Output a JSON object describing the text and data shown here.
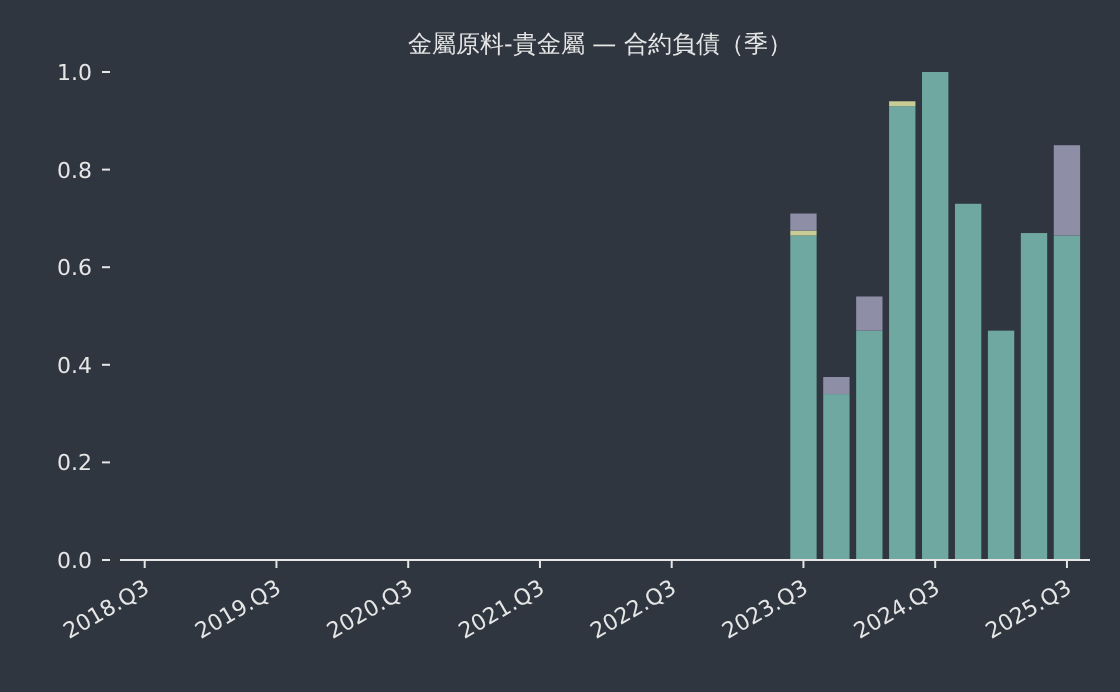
{
  "chart_data": {
    "type": "bar",
    "title": "金屬原料-貴金屬 — 合約負債（季）",
    "stacked": true,
    "categories": [
      "2018.Q3",
      null,
      null,
      null,
      "2019.Q3",
      null,
      null,
      null,
      "2020.Q3",
      null,
      null,
      null,
      "2021.Q3",
      null,
      null,
      null,
      "2022.Q3",
      null,
      null,
      null,
      "2023.Q3",
      null,
      null,
      null,
      "2024.Q3",
      null,
      null,
      null,
      "2025.Q3"
    ],
    "series": [
      {
        "color": "#6fa8a0",
        "values": [
          null,
          null,
          null,
          null,
          null,
          null,
          null,
          null,
          null,
          null,
          null,
          null,
          null,
          null,
          null,
          null,
          null,
          null,
          null,
          null,
          0.665,
          0.34,
          0.47,
          0.93,
          1.0,
          0.73,
          0.47,
          0.67,
          0.665
        ]
      },
      {
        "color": "#c9cc94",
        "values": [
          null,
          null,
          null,
          null,
          null,
          null,
          null,
          null,
          null,
          null,
          null,
          null,
          null,
          null,
          null,
          null,
          null,
          null,
          null,
          null,
          0.01,
          null,
          null,
          0.01,
          null,
          null,
          null,
          null,
          null
        ]
      },
      {
        "color": "#8e8ea6",
        "values": [
          null,
          null,
          null,
          null,
          null,
          null,
          null,
          null,
          null,
          null,
          null,
          null,
          null,
          null,
          null,
          null,
          null,
          null,
          null,
          null,
          0.035,
          0.035,
          0.07,
          null,
          null,
          null,
          null,
          null,
          0.185
        ]
      }
    ],
    "ylim": [
      0,
      1
    ],
    "yticks": [
      {
        "value": 0,
        "label": "0.0"
      },
      0.2,
      0.4,
      0.6,
      0.8,
      {
        "value": 1,
        "label": "1.0"
      }
    ],
    "grid": false
  }
}
